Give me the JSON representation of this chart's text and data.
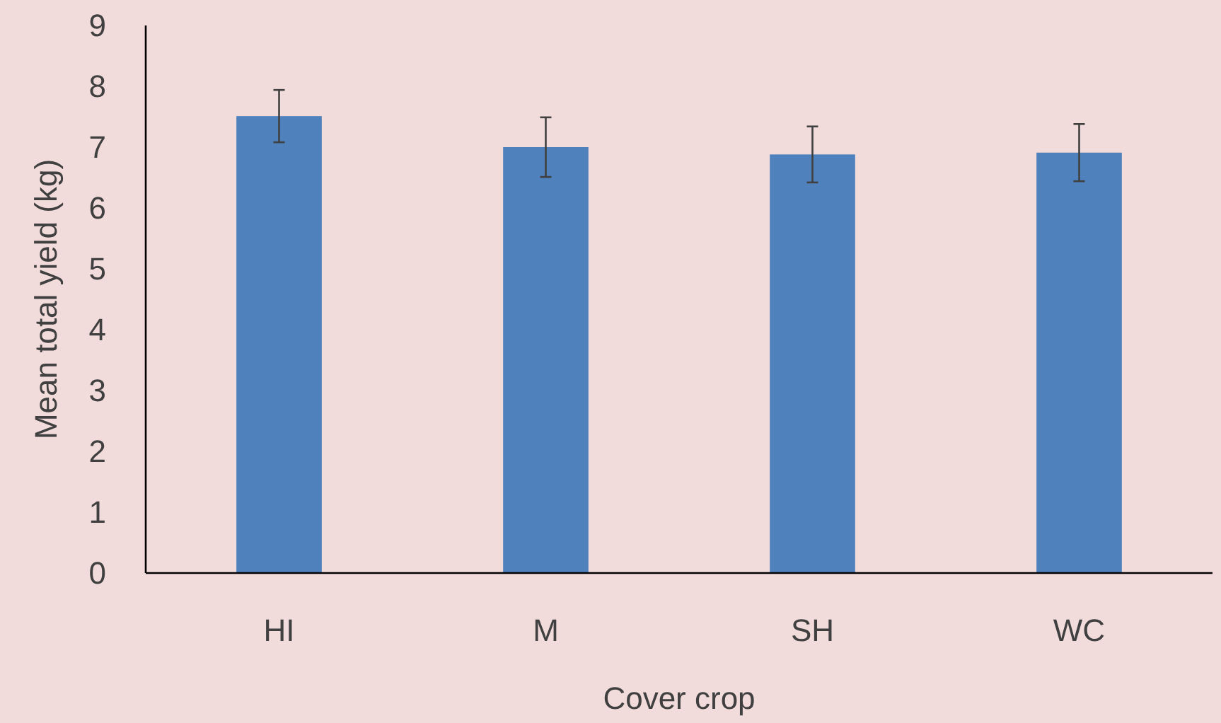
{
  "chart_data": {
    "type": "bar",
    "xlabel": "Cover crop",
    "ylabel": "Mean total yield (kg)",
    "categories": [
      "HI",
      "M",
      "SH",
      "WC"
    ],
    "values": [
      7.51,
      7.0,
      6.88,
      6.91
    ],
    "errors": [
      0.43,
      0.49,
      0.46,
      0.47
    ],
    "color": "#4f81bd",
    "ylim": [
      0,
      9
    ],
    "yticks": [
      0,
      1,
      2,
      3,
      4,
      5,
      6,
      7,
      8,
      9
    ],
    "grid": false
  }
}
